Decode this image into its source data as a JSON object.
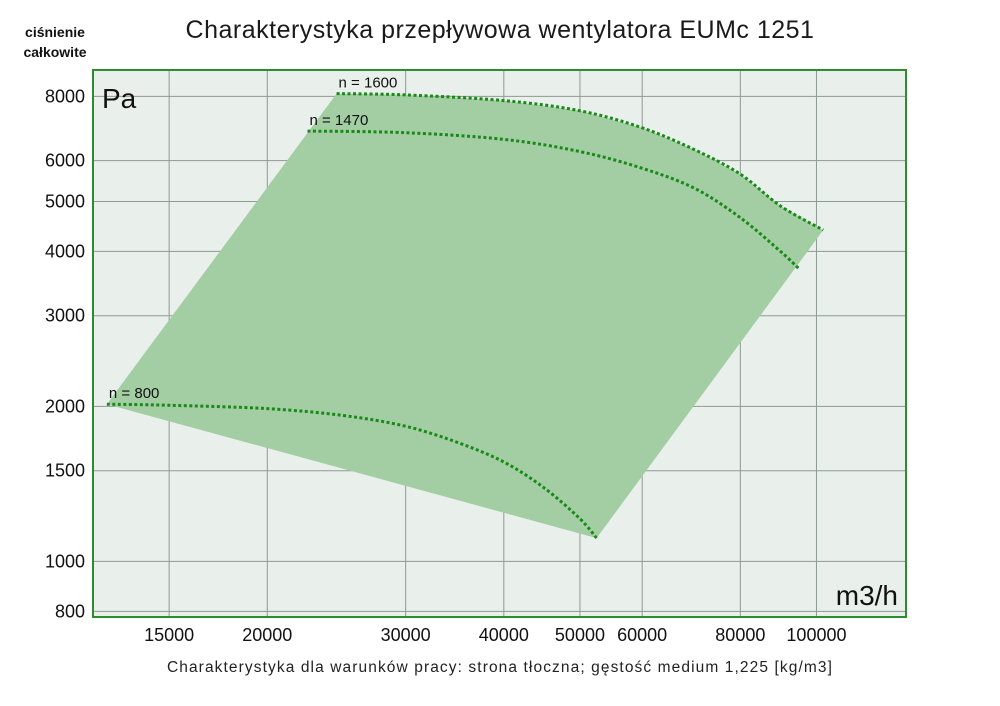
{
  "chart_data": {
    "type": "area",
    "title": "Charakterystyka przepływowa wentylatora EUMc 1251",
    "ylabel_lines": [
      "ciśnienie",
      "całkowite"
    ],
    "y_unit": "Pa",
    "x_unit": "m3/h",
    "caption": "Charakterystyka dla warunków pracy: strona tłoczna; gęstość medium 1,225 [kg/m3]",
    "x_scale": "log",
    "y_scale": "log",
    "xlim": [
      12000,
      130000
    ],
    "ylim": [
      780,
      9000
    ],
    "grid": true,
    "x_ticks": [
      15000,
      20000,
      30000,
      40000,
      50000,
      60000,
      80000,
      100000
    ],
    "x_tick_labels": [
      "15000",
      "20000",
      "30000",
      "40000",
      "50000",
      "60000",
      "80000",
      "100000"
    ],
    "y_ticks": [
      800,
      1000,
      1500,
      2000,
      3000,
      4000,
      5000,
      6000,
      8000
    ],
    "y_tick_labels": [
      "800",
      "1000",
      "1500",
      "2000",
      "3000",
      "4000",
      "5000",
      "6000",
      "8000"
    ],
    "operating_region": [
      [
        12500,
        2020
      ],
      [
        24500,
        8100
      ],
      [
        30000,
        8050
      ],
      [
        40000,
        7850
      ],
      [
        50000,
        7500
      ],
      [
        60000,
        6950
      ],
      [
        70000,
        6300
      ],
      [
        80000,
        5650
      ],
      [
        90000,
        4900
      ],
      [
        102000,
        4400
      ],
      [
        52500,
        1110
      ]
    ],
    "series": [
      {
        "name": "n = 1600",
        "x": [
          24500,
          30000,
          40000,
          50000,
          60000,
          70000,
          80000,
          90000,
          102000
        ],
        "y": [
          8100,
          8050,
          7850,
          7500,
          6950,
          6300,
          5650,
          4900,
          4400
        ]
      },
      {
        "name": "n = 1470",
        "x": [
          22500,
          30000,
          40000,
          50000,
          60000,
          70000,
          80000,
          90000,
          95000
        ],
        "y": [
          6850,
          6800,
          6600,
          6250,
          5800,
          5300,
          4650,
          4000,
          3700
        ]
      },
      {
        "name": "n = 800",
        "x": [
          12500,
          15000,
          20000,
          25000,
          30000,
          35000,
          40000,
          45000,
          50000,
          52500
        ],
        "y": [
          2020,
          2010,
          1980,
          1920,
          1830,
          1700,
          1560,
          1390,
          1210,
          1110
        ]
      }
    ],
    "colors": {
      "plot_bg": "#e9efeb",
      "region_fill": "#a3cda3",
      "frame": "#2e8b2e",
      "grid": "#8f9a92",
      "curve": "#188a18"
    }
  }
}
